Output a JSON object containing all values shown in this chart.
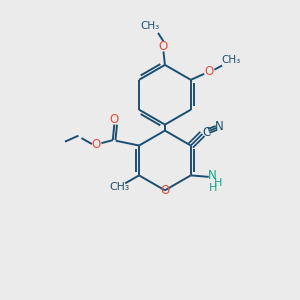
{
  "bg_color": "#ebebeb",
  "bond_color": "#1b4f72",
  "bond_width": 1.4,
  "O_color": "#e74c3c",
  "N_color": "#1b4f72",
  "CN_color": "#1b4f72",
  "NH2_color": "#17a589",
  "figsize": [
    3.0,
    3.0
  ],
  "dpi": 100,
  "xlim": [
    0,
    10
  ],
  "ylim": [
    0,
    10
  ]
}
